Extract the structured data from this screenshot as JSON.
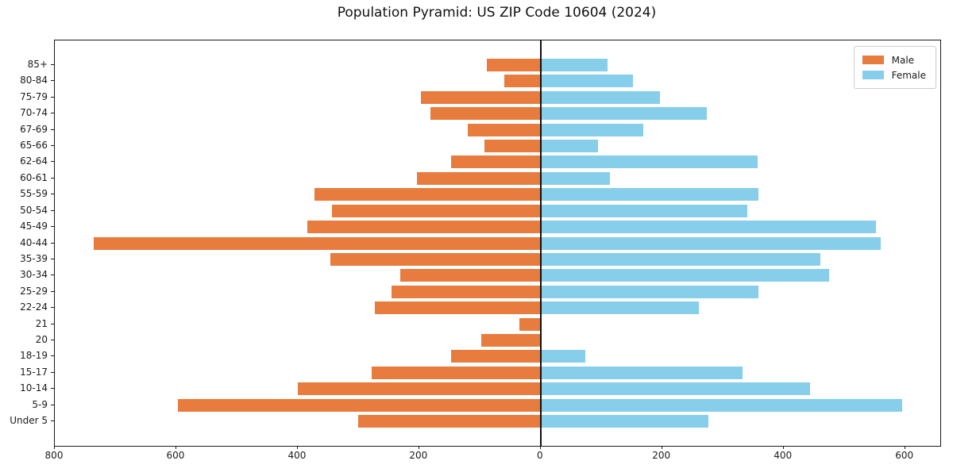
{
  "chart_data": {
    "type": "bar",
    "variant": "population-pyramid",
    "title": "Population Pyramid: US ZIP Code 10604 (2024)",
    "categories": [
      "85+",
      "80-84",
      "75-79",
      "70-74",
      "67-69",
      "65-66",
      "62-64",
      "60-61",
      "55-59",
      "50-54",
      "45-49",
      "40-44",
      "35-39",
      "30-34",
      "25-29",
      "22-24",
      "21",
      "20",
      "18-19",
      "15-17",
      "10-14",
      "5-9",
      "Under 5"
    ],
    "series": [
      {
        "name": "Male",
        "side": "left",
        "color": "#e87c3e",
        "values": [
          88,
          60,
          197,
          182,
          120,
          92,
          148,
          204,
          373,
          344,
          384,
          736,
          346,
          231,
          246,
          273,
          35,
          98,
          148,
          278,
          400,
          597,
          301
        ]
      },
      {
        "name": "Female",
        "side": "right",
        "color": "#87ceeb",
        "values": [
          110,
          152,
          197,
          273,
          169,
          95,
          357,
          114,
          358,
          340,
          552,
          560,
          461,
          475,
          358,
          260,
          0,
          0,
          73,
          333,
          444,
          595,
          276
        ]
      }
    ],
    "x_axis": {
      "min": -800,
      "max": 658,
      "tick_values": [
        -800,
        -600,
        -400,
        -200,
        0,
        200,
        400,
        600
      ],
      "tick_labels": [
        "800",
        "600",
        "400",
        "200",
        "0",
        "200",
        "400",
        "600"
      ]
    },
    "legend": {
      "position": "upper-right",
      "entries": [
        "Male",
        "Female"
      ]
    },
    "zero_line": true,
    "grid": false,
    "axis_color": "#1a1a1a"
  }
}
